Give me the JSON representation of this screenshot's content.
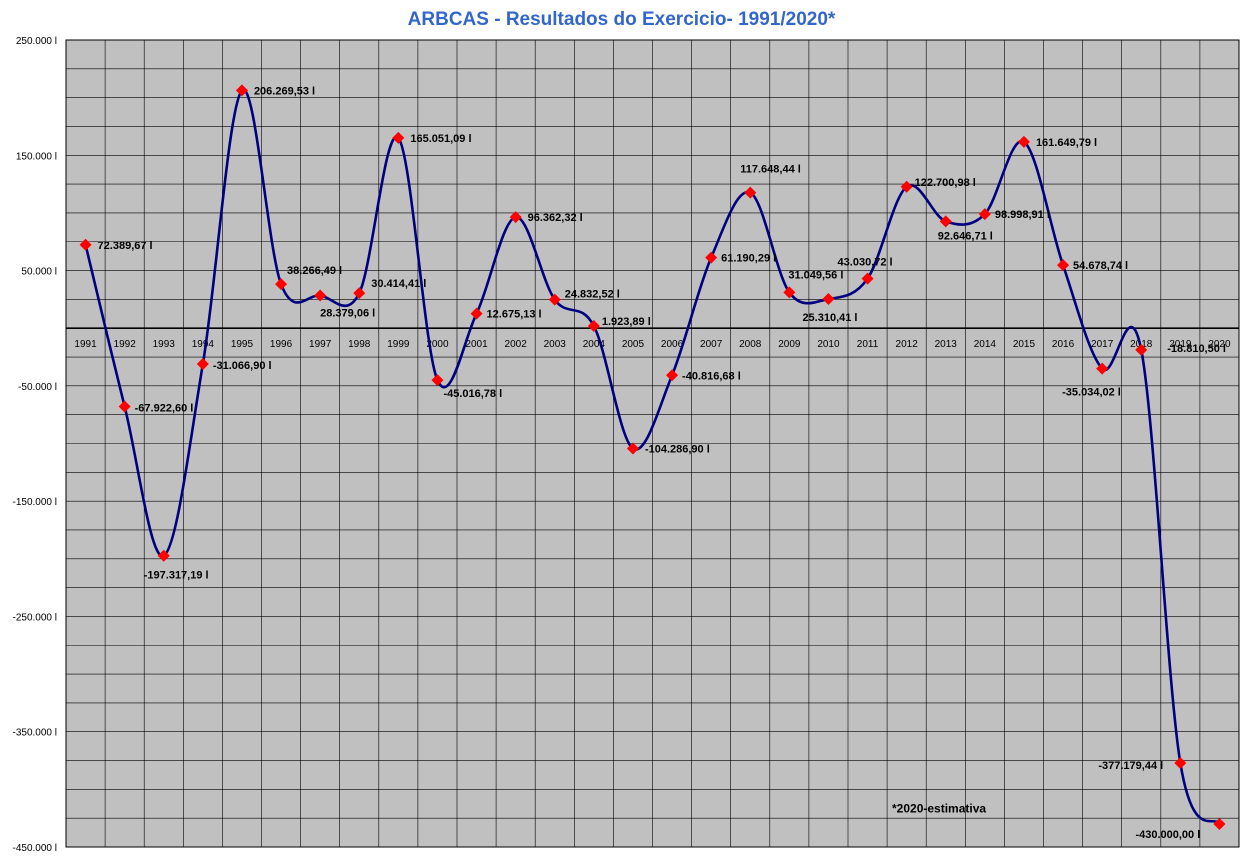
{
  "chart_data": {
    "type": "line",
    "title": "ARBCAS - Resultados do Exercicio- 1991/2020*",
    "xlabel": "",
    "ylabel": "",
    "categories": [
      "1991",
      "1992",
      "1993",
      "1994",
      "1995",
      "1996",
      "1997",
      "1998",
      "1999",
      "2000",
      "2001",
      "2002",
      "2003",
      "2004",
      "2005",
      "2006",
      "2007",
      "2008",
      "2009",
      "2010",
      "2011",
      "2012",
      "2013",
      "2014",
      "2015",
      "2016",
      "2017",
      "2018",
      "2019",
      "2020"
    ],
    "values": [
      72389.67,
      -67922.6,
      -197317.19,
      -31066.9,
      206269.53,
      38266.49,
      28379.06,
      30414.41,
      165051.09,
      -45016.78,
      12675.13,
      96362.32,
      24832.52,
      1923.89,
      -104286.9,
      -40816.68,
      61190.29,
      117648.44,
      31049.56,
      25310.41,
      43030.72,
      122700.98,
      92646.71,
      98998.91,
      161649.79,
      54678.74,
      -35034.02,
      -18810.5,
      -377179.44,
      -430000.0
    ],
    "data_labels": [
      "72.389,67 l",
      "-67.922,60 l",
      "-197.317,19 l",
      "-31.066,90 l",
      "206.269,53 l",
      "38.266,49 l",
      "28.379,06 l",
      "30.414,41 l",
      "165.051,09 l",
      "-45.016,78 l",
      "12.675,13 l",
      "96.362,32 l",
      "24.832,52 l",
      "1.923,89 l",
      "-104.286,90 l",
      "-40.816,68 l",
      "61.190,29 l",
      "117.648,44 l",
      "31.049,56 l",
      "25.310,41 l",
      "43.030,72 l",
      "122.700,98 l",
      "92.646,71 l",
      "98.998,91 l",
      "161.649,79 l",
      "54.678,74 l",
      "-35.034,02 l",
      "-18.810,50 l",
      "-377.179,44 l",
      "-430.000,00 l"
    ],
    "y_ticks": [
      250000,
      150000,
      50000,
      -50000,
      -150000,
      -250000,
      -350000,
      -450000
    ],
    "y_tick_labels": [
      "250.000 l",
      "150.000 l",
      "50.000 l",
      "-50.000 l",
      "-150.000 l",
      "-250.000 l",
      "-350.000 l",
      "-450.000 l"
    ],
    "ylim": [
      -450000,
      250000
    ],
    "grid": true,
    "legend": "none",
    "annotation": "*2020-estimativa",
    "colors": {
      "title": "#3366CC",
      "line": "#000080",
      "marker": "#FF0000",
      "plot_background": "#C0C0C0",
      "grid": "#000000"
    }
  }
}
